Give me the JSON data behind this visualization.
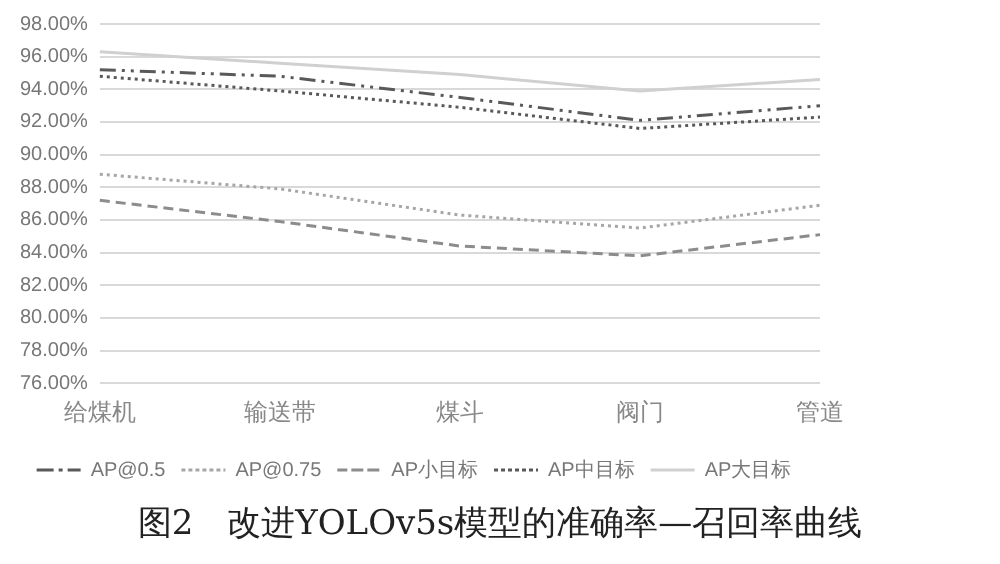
{
  "chart_data": {
    "type": "line",
    "title": "图2　改进YOLOv5s模型的准确率—召回率曲线",
    "categories": [
      "给煤机",
      "输送带",
      "煤斗",
      "阀门",
      "管道"
    ],
    "series": [
      {
        "name": "AP@0.5",
        "color": "#595959",
        "line_style": "dashdot",
        "values": [
          95.2,
          94.8,
          93.5,
          92.1,
          93.0
        ]
      },
      {
        "name": "AP@0.75",
        "color": "#a6a6a6",
        "line_style": "dotted",
        "values": [
          88.8,
          87.9,
          86.3,
          85.5,
          86.9
        ]
      },
      {
        "name": "AP小目标",
        "color": "#8c8c8c",
        "line_style": "dashed",
        "values": [
          87.2,
          85.9,
          84.4,
          83.8,
          85.1
        ]
      },
      {
        "name": "AP中目标",
        "color": "#595959",
        "line_style": "dotted",
        "values": [
          94.8,
          93.9,
          92.9,
          91.6,
          92.3
        ]
      },
      {
        "name": "AP大目标",
        "color": "#d0d0d0",
        "line_style": "solid",
        "values": [
          96.3,
          95.6,
          94.9,
          93.9,
          94.6
        ]
      }
    ],
    "ylim": [
      76,
      98
    ],
    "yticks": [
      {
        "value": 76,
        "label": "76.00%"
      },
      {
        "value": 78,
        "label": "78.00%"
      },
      {
        "value": 80,
        "label": "80.00%"
      },
      {
        "value": 82,
        "label": "82.00%"
      },
      {
        "value": 84,
        "label": "84.00%"
      },
      {
        "value": 86,
        "label": "86.00%"
      },
      {
        "value": 88,
        "label": "88.00%"
      },
      {
        "value": 90,
        "label": "90.00%"
      },
      {
        "value": 92,
        "label": "92.00%"
      },
      {
        "value": 94,
        "label": "94.00%"
      },
      {
        "value": 96,
        "label": "96.00%"
      },
      {
        "value": 98,
        "label": "98.00%"
      }
    ],
    "grid": "y",
    "legend": "bottom",
    "marker": "none"
  }
}
